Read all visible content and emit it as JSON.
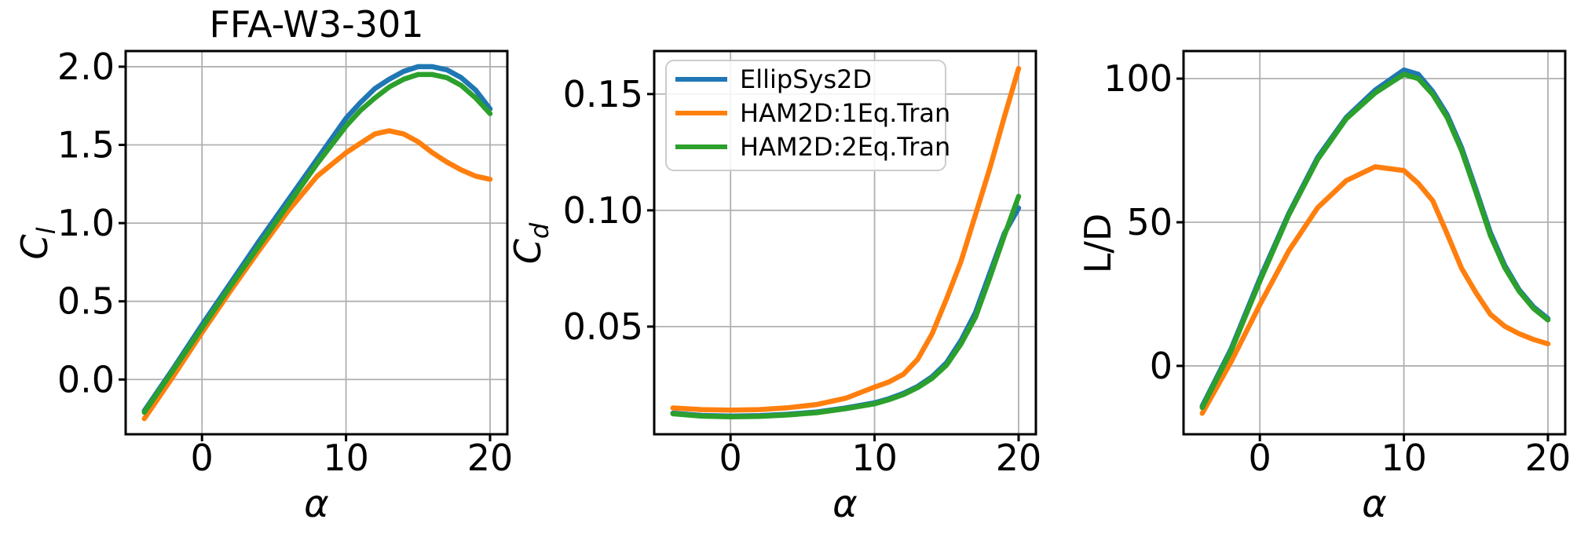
{
  "figure_title": "FFA-W3-301",
  "legend": {
    "location": "upper left",
    "items": [
      {
        "label": "EllipSys2D",
        "color": "#1f77b4"
      },
      {
        "label": "HAM2D:1Eq.Tran",
        "color": "#ff7f0e"
      },
      {
        "label": "HAM2D:2Eq.Tran",
        "color": "#2ca02c"
      }
    ]
  },
  "chart_data": [
    {
      "id": "cl",
      "type": "line",
      "title": "FFA-W3-301",
      "xlabel": "α",
      "ylabel": "Cl",
      "ylabel_parts": {
        "main": "C",
        "sub": "l",
        "italic": true
      },
      "x": [
        -4,
        -2,
        0,
        2,
        4,
        6,
        8,
        10,
        11,
        12,
        13,
        14,
        15,
        16,
        17,
        18,
        19,
        20
      ],
      "series": [
        {
          "name": "EllipSys2D",
          "color": "#1f77b4",
          "values": [
            -0.2,
            0.07,
            0.35,
            0.62,
            0.89,
            1.15,
            1.41,
            1.67,
            1.77,
            1.86,
            1.92,
            1.97,
            2.0,
            2.0,
            1.98,
            1.93,
            1.85,
            1.73
          ]
        },
        {
          "name": "HAM2D:1Eq.Tran",
          "color": "#ff7f0e",
          "values": [
            -0.25,
            0.02,
            0.3,
            0.57,
            0.83,
            1.08,
            1.3,
            1.45,
            1.51,
            1.57,
            1.59,
            1.57,
            1.52,
            1.45,
            1.39,
            1.34,
            1.3,
            1.28
          ]
        },
        {
          "name": "HAM2D:2Eq.Tran",
          "color": "#2ca02c",
          "values": [
            -0.21,
            0.06,
            0.33,
            0.6,
            0.86,
            1.12,
            1.38,
            1.62,
            1.72,
            1.8,
            1.87,
            1.92,
            1.95,
            1.95,
            1.93,
            1.88,
            1.8,
            1.7
          ]
        }
      ],
      "xlim": [
        -5.3,
        21.2
      ],
      "ylim": [
        -0.35,
        2.1
      ],
      "xticks": [
        0,
        10,
        20
      ],
      "xtick_labels": [
        "0",
        "10",
        "20"
      ],
      "yticks": [
        0.0,
        0.5,
        1.0,
        1.5,
        2.0
      ],
      "ytick_labels": [
        "0.0",
        "0.5",
        "1.0",
        "1.5",
        "2.0"
      ],
      "grid": true,
      "legend": false
    },
    {
      "id": "cd",
      "type": "line",
      "title": "",
      "xlabel": "α",
      "ylabel": "Cd",
      "ylabel_parts": {
        "main": "C",
        "sub": "d",
        "italic": true
      },
      "x": [
        -4,
        -2,
        0,
        2,
        4,
        6,
        8,
        10,
        11,
        12,
        13,
        14,
        15,
        16,
        17,
        18,
        19,
        20
      ],
      "series": [
        {
          "name": "EllipSys2D",
          "color": "#1f77b4",
          "values": [
            0.0128,
            0.0118,
            0.0115,
            0.0117,
            0.0123,
            0.0133,
            0.015,
            0.0172,
            0.019,
            0.0213,
            0.0243,
            0.0285,
            0.0345,
            0.044,
            0.056,
            0.073,
            0.09,
            0.101
          ]
        },
        {
          "name": "HAM2D:1Eq.Tran",
          "color": "#ff7f0e",
          "values": [
            0.015,
            0.0143,
            0.0141,
            0.0143,
            0.0151,
            0.0165,
            0.0192,
            0.024,
            0.0262,
            0.0295,
            0.036,
            0.047,
            0.062,
            0.078,
            0.098,
            0.118,
            0.14,
            0.161
          ]
        },
        {
          "name": "HAM2D:2Eq.Tran",
          "color": "#2ca02c",
          "values": [
            0.0125,
            0.0115,
            0.0112,
            0.0114,
            0.012,
            0.013,
            0.0147,
            0.0168,
            0.0186,
            0.0208,
            0.0238,
            0.0278,
            0.0335,
            0.0425,
            0.054,
            0.071,
            0.089,
            0.106
          ]
        }
      ],
      "xlim": [
        -5.3,
        21.2
      ],
      "ylim": [
        0.0037,
        0.1685
      ],
      "xticks": [
        0,
        10,
        20
      ],
      "xtick_labels": [
        "0",
        "10",
        "20"
      ],
      "yticks": [
        0.05,
        0.1,
        0.15
      ],
      "ytick_labels": [
        "0.05",
        "0.10",
        "0.15"
      ],
      "grid": true,
      "legend": true
    },
    {
      "id": "ld",
      "type": "line",
      "title": "",
      "xlabel": "α",
      "ylabel": "L/D",
      "ylabel_parts": {
        "main": "L/D",
        "sub": "",
        "italic": false
      },
      "x": [
        -4,
        -2,
        0,
        2,
        4,
        6,
        8,
        10,
        11,
        12,
        13,
        14,
        15,
        16,
        17,
        18,
        19,
        20
      ],
      "series": [
        {
          "name": "EllipSys2D",
          "color": "#1f77b4",
          "values": [
            -14.0,
            5.9,
            30.4,
            53.0,
            72.5,
            86.5,
            96.0,
            103.0,
            101.5,
            95.5,
            87.5,
            76.0,
            61.5,
            46.5,
            35.0,
            26.5,
            20.5,
            16.5
          ]
        },
        {
          "name": "HAM2D:1Eq.Tran",
          "color": "#ff7f0e",
          "values": [
            -16.5,
            1.4,
            21.3,
            40.0,
            55.0,
            64.5,
            69.3,
            68.0,
            63.5,
            57.5,
            46.0,
            34.0,
            25.5,
            18.0,
            13.8,
            11.2,
            9.2,
            7.7
          ]
        },
        {
          "name": "HAM2D:2Eq.Tran",
          "color": "#2ca02c",
          "values": [
            -14.5,
            5.2,
            29.5,
            52.5,
            71.8,
            86.0,
            95.0,
            101.5,
            100.0,
            94.5,
            86.5,
            75.0,
            60.5,
            45.5,
            34.2,
            26.0,
            20.0,
            16.0
          ]
        }
      ],
      "xlim": [
        -5.3,
        21.2
      ],
      "ylim": [
        -23.8,
        109.6
      ],
      "xticks": [
        0,
        10,
        20
      ],
      "xtick_labels": [
        "0",
        "10",
        "20"
      ],
      "yticks": [
        0,
        50,
        100
      ],
      "ytick_labels": [
        "0",
        "50",
        "100"
      ],
      "grid": true,
      "legend": false
    }
  ]
}
